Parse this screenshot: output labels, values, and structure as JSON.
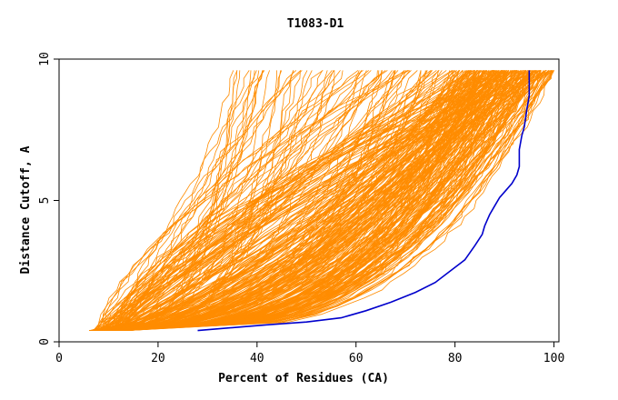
{
  "chart_data": {
    "type": "line",
    "title": "T1083-D1",
    "xlabel": "Percent of Residues (CA)",
    "ylabel": "Distance Cutoff, A",
    "xlim": [
      0,
      101
    ],
    "ylim": [
      0,
      10
    ],
    "x_ticks": [
      0,
      20,
      40,
      60,
      80,
      100
    ],
    "y_ticks": [
      0,
      5,
      10
    ],
    "grid": false,
    "colors": {
      "models": "#ff8c00",
      "highlight": "#0000cc",
      "frame": "#000000"
    },
    "highlight_series": {
      "x": [
        28,
        35,
        42,
        50,
        57,
        62,
        67,
        72,
        76,
        79,
        82,
        84,
        85.5,
        86,
        86.5,
        87,
        88,
        89,
        90,
        91.5,
        92.5,
        93,
        93,
        93.5,
        94,
        94.5,
        95,
        95,
        95
      ],
      "y": [
        0.4,
        0.5,
        0.6,
        0.7,
        0.85,
        1.1,
        1.4,
        1.75,
        2.1,
        2.5,
        2.9,
        3.4,
        3.8,
        4.1,
        4.3,
        4.5,
        4.8,
        5.1,
        5.3,
        5.6,
        5.9,
        6.2,
        6.8,
        7.3,
        7.6,
        8.2,
        8.7,
        9.2,
        9.6
      ]
    },
    "model_series_count": 320
  }
}
